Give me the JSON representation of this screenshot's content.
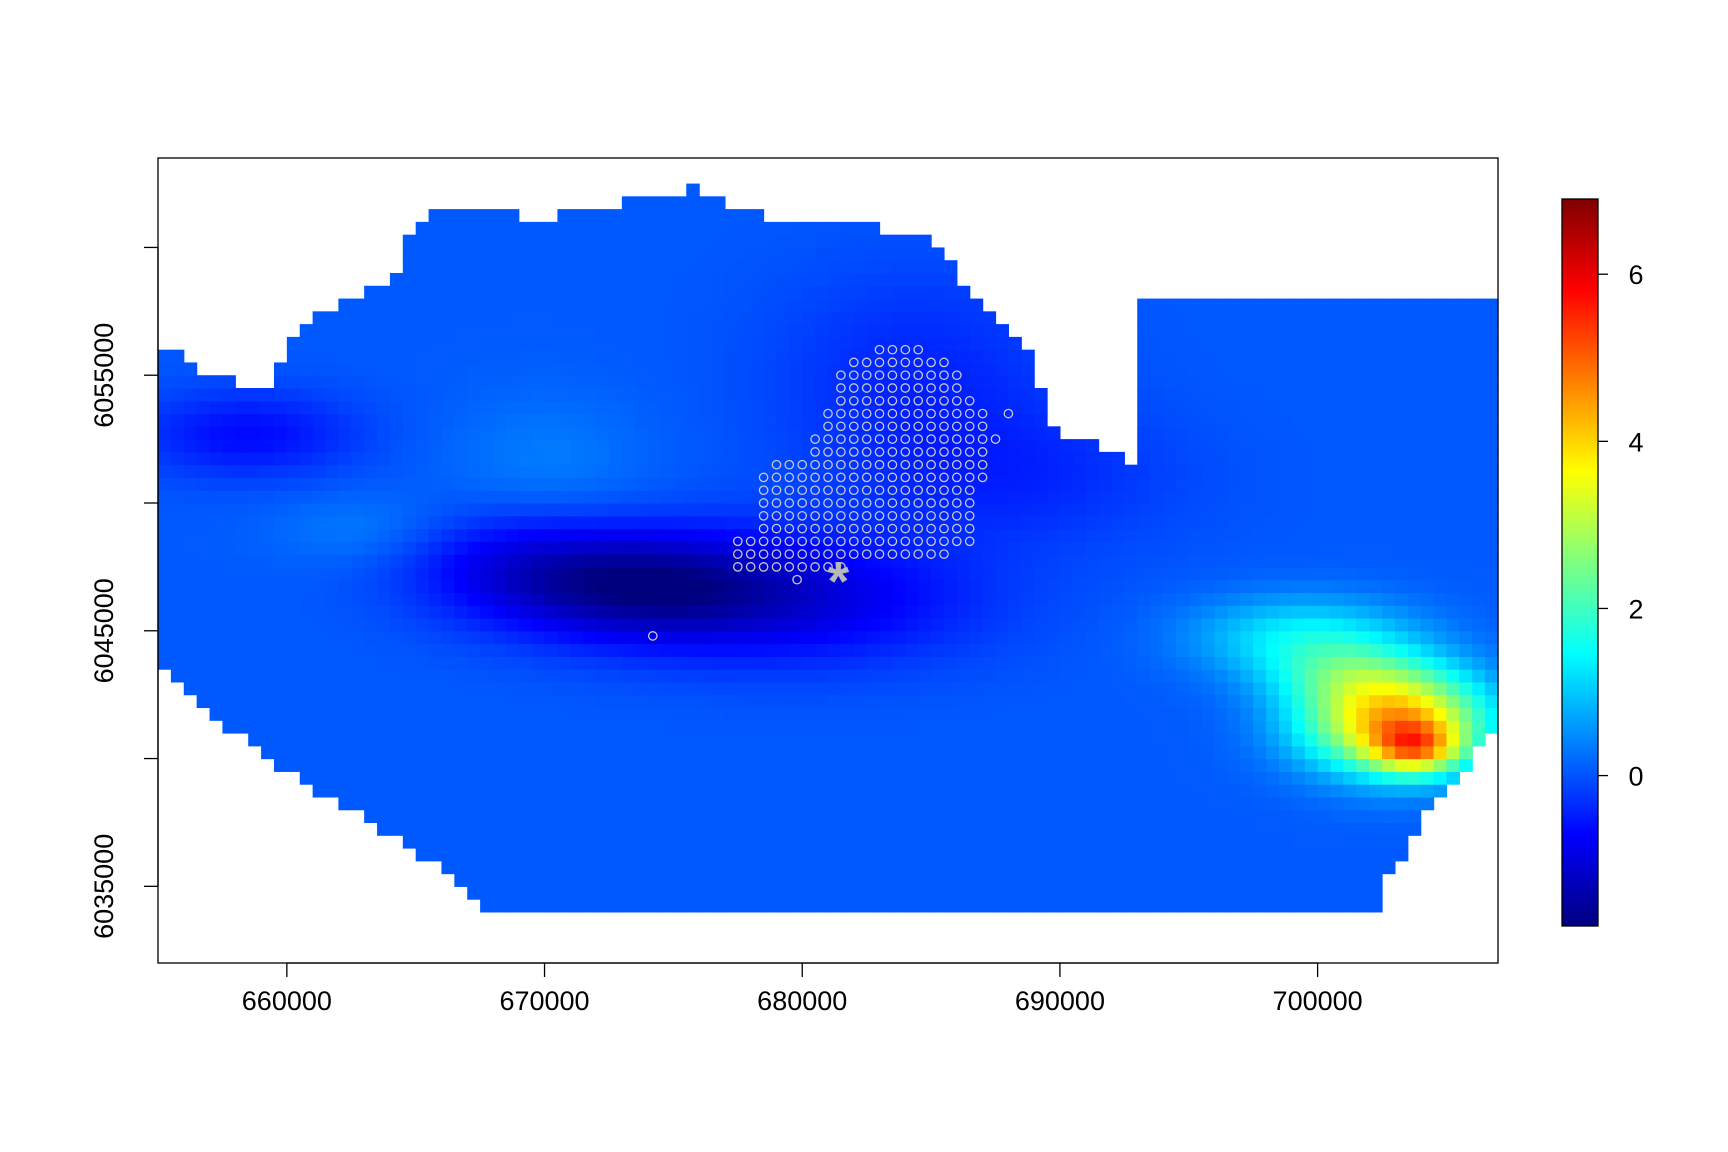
{
  "chart_data": {
    "type": "heatmap",
    "title": "",
    "xlabel": "",
    "ylabel": "",
    "xlim": [
      655000,
      707000
    ],
    "ylim": [
      6032000,
      6063500
    ],
    "x_ticks": [
      660000,
      670000,
      680000,
      690000,
      700000
    ],
    "x_tick_labels": [
      "660000",
      "670000",
      "680000",
      "690000",
      "700000"
    ],
    "y_ticks": [
      6035000,
      6040000,
      6045000,
      6050000,
      6055000,
      6060000
    ],
    "y_tick_labels": [
      "6035000",
      "",
      "6045000",
      "",
      "6055000",
      ""
    ],
    "colorbar": {
      "range": [
        -1.8,
        6.9
      ],
      "ticks": [
        0,
        2,
        4,
        6
      ],
      "tick_labels": [
        "0",
        "2",
        "4",
        "6"
      ],
      "palette": [
        "#00007F",
        "#0000FF",
        "#007FFF",
        "#00FFFF",
        "#7FFF7F",
        "#FFFF00",
        "#FF7F00",
        "#FF0000",
        "#7F0000"
      ]
    },
    "grid": false,
    "legend": "colorbar right",
    "region_polygons": [
      [
        [
          655000,
          6056300
        ],
        [
          657000,
          6055000
        ],
        [
          659500,
          6054500
        ],
        [
          660000,
          6056000
        ],
        [
          661000,
          6057200
        ],
        [
          662500,
          6058000
        ],
        [
          664000,
          6058500
        ],
        [
          665000,
          6061000
        ],
        [
          666500,
          6061500
        ],
        [
          668000,
          6061600
        ],
        [
          669500,
          6061000
        ],
        [
          672000,
          6061500
        ],
        [
          674000,
          6062000
        ],
        [
          676000,
          6062300
        ],
        [
          678000,
          6061300
        ],
        [
          681000,
          6061000
        ],
        [
          684500,
          6060600
        ],
        [
          686000,
          6059000
        ],
        [
          687500,
          6057500
        ],
        [
          689000,
          6056000
        ],
        [
          689500,
          6053000
        ],
        [
          691000,
          6052500
        ],
        [
          693000,
          6051500
        ],
        [
          693000,
          6058200
        ],
        [
          707000,
          6058200
        ],
        [
          707000,
          6041600
        ],
        [
          706000,
          6040000
        ],
        [
          704500,
          6038300
        ],
        [
          703500,
          6036700
        ],
        [
          702500,
          6034800
        ],
        [
          702500,
          6034000
        ],
        [
          667500,
          6034000
        ],
        [
          667000,
          6035000
        ],
        [
          665500,
          6036000
        ],
        [
          663500,
          6037300
        ],
        [
          661500,
          6038600
        ],
        [
          660000,
          6039500
        ],
        [
          658000,
          6041000
        ],
        [
          656000,
          6042800
        ],
        [
          655000,
          6044000
        ]
      ]
    ],
    "field_base": 0.05,
    "field_features": [
      {
        "x": 673500,
        "y": 6046800,
        "sx": 4000,
        "sy": 1500,
        "amp": -1.5
      },
      {
        "x": 680000,
        "y": 6046200,
        "sx": 5000,
        "sy": 1800,
        "amp": -0.9
      },
      {
        "x": 668500,
        "y": 6047800,
        "sx": 3000,
        "sy": 1500,
        "amp": -0.6
      },
      {
        "x": 658500,
        "y": 6052700,
        "sx": 3000,
        "sy": 1200,
        "amp": -0.7
      },
      {
        "x": 684500,
        "y": 6055000,
        "sx": 4000,
        "sy": 3000,
        "amp": -0.45
      },
      {
        "x": 670000,
        "y": 6051500,
        "sx": 2800,
        "sy": 2000,
        "amp": 0.3
      },
      {
        "x": 663000,
        "y": 6049000,
        "sx": 2500,
        "sy": 1000,
        "amp": 0.3
      },
      {
        "x": 688500,
        "y": 6051000,
        "sx": 4500,
        "sy": 2000,
        "amp": -0.4
      },
      {
        "x": 703000,
        "y": 6041500,
        "sx": 2500,
        "sy": 1400,
        "amp": 4.2
      },
      {
        "x": 703800,
        "y": 6040400,
        "sx": 1200,
        "sy": 700,
        "amp": 2.4
      },
      {
        "x": 699500,
        "y": 6044800,
        "sx": 3000,
        "sy": 1100,
        "amp": 1.3
      },
      {
        "x": 701000,
        "y": 6043300,
        "sx": 2200,
        "sy": 900,
        "amp": 1.0
      }
    ],
    "observation_points_shape": "open-circle",
    "observation_points": [
      [
        683000,
        6056000
      ],
      [
        683500,
        6056000
      ],
      [
        684000,
        6056000
      ],
      [
        684500,
        6056000
      ],
      [
        682000,
        6055500
      ],
      [
        682500,
        6055500
      ],
      [
        683000,
        6055500
      ],
      [
        683500,
        6055500
      ],
      [
        684000,
        6055500
      ],
      [
        684500,
        6055500
      ],
      [
        685000,
        6055500
      ],
      [
        685500,
        6055500
      ],
      [
        681500,
        6055000
      ],
      [
        682000,
        6055000
      ],
      [
        682500,
        6055000
      ],
      [
        683000,
        6055000
      ],
      [
        683500,
        6055000
      ],
      [
        684000,
        6055000
      ],
      [
        684500,
        6055000
      ],
      [
        685000,
        6055000
      ],
      [
        685500,
        6055000
      ],
      [
        686000,
        6055000
      ],
      [
        681500,
        6054500
      ],
      [
        682000,
        6054500
      ],
      [
        682500,
        6054500
      ],
      [
        683000,
        6054500
      ],
      [
        683500,
        6054500
      ],
      [
        684000,
        6054500
      ],
      [
        684500,
        6054500
      ],
      [
        685000,
        6054500
      ],
      [
        685500,
        6054500
      ],
      [
        686000,
        6054500
      ],
      [
        681500,
        6054000
      ],
      [
        682000,
        6054000
      ],
      [
        682500,
        6054000
      ],
      [
        683000,
        6054000
      ],
      [
        683500,
        6054000
      ],
      [
        684000,
        6054000
      ],
      [
        684500,
        6054000
      ],
      [
        685000,
        6054000
      ],
      [
        685500,
        6054000
      ],
      [
        686000,
        6054000
      ],
      [
        686500,
        6054000
      ],
      [
        681000,
        6053500
      ],
      [
        681500,
        6053500
      ],
      [
        682000,
        6053500
      ],
      [
        682500,
        6053500
      ],
      [
        683000,
        6053500
      ],
      [
        683500,
        6053500
      ],
      [
        684000,
        6053500
      ],
      [
        684500,
        6053500
      ],
      [
        685000,
        6053500
      ],
      [
        685500,
        6053500
      ],
      [
        686000,
        6053500
      ],
      [
        686500,
        6053500
      ],
      [
        687000,
        6053500
      ],
      [
        681000,
        6053000
      ],
      [
        681500,
        6053000
      ],
      [
        682000,
        6053000
      ],
      [
        682500,
        6053000
      ],
      [
        683000,
        6053000
      ],
      [
        683500,
        6053000
      ],
      [
        684000,
        6053000
      ],
      [
        684500,
        6053000
      ],
      [
        685000,
        6053000
      ],
      [
        685500,
        6053000
      ],
      [
        686000,
        6053000
      ],
      [
        686500,
        6053000
      ],
      [
        687000,
        6053000
      ],
      [
        680500,
        6052500
      ],
      [
        681000,
        6052500
      ],
      [
        681500,
        6052500
      ],
      [
        682000,
        6052500
      ],
      [
        682500,
        6052500
      ],
      [
        683000,
        6052500
      ],
      [
        683500,
        6052500
      ],
      [
        684000,
        6052500
      ],
      [
        684500,
        6052500
      ],
      [
        685000,
        6052500
      ],
      [
        685500,
        6052500
      ],
      [
        686000,
        6052500
      ],
      [
        686500,
        6052500
      ],
      [
        687000,
        6052500
      ],
      [
        687500,
        6052500
      ],
      [
        680500,
        6052000
      ],
      [
        681000,
        6052000
      ],
      [
        681500,
        6052000
      ],
      [
        682000,
        6052000
      ],
      [
        682500,
        6052000
      ],
      [
        683000,
        6052000
      ],
      [
        683500,
        6052000
      ],
      [
        684000,
        6052000
      ],
      [
        684500,
        6052000
      ],
      [
        685000,
        6052000
      ],
      [
        685500,
        6052000
      ],
      [
        686000,
        6052000
      ],
      [
        686500,
        6052000
      ],
      [
        687000,
        6052000
      ],
      [
        679000,
        6051500
      ],
      [
        679500,
        6051500
      ],
      [
        680000,
        6051500
      ],
      [
        680500,
        6051500
      ],
      [
        681000,
        6051500
      ],
      [
        681500,
        6051500
      ],
      [
        682000,
        6051500
      ],
      [
        682500,
        6051500
      ],
      [
        683000,
        6051500
      ],
      [
        683500,
        6051500
      ],
      [
        684000,
        6051500
      ],
      [
        684500,
        6051500
      ],
      [
        685000,
        6051500
      ],
      [
        685500,
        6051500
      ],
      [
        686000,
        6051500
      ],
      [
        686500,
        6051500
      ],
      [
        687000,
        6051500
      ],
      [
        678500,
        6051000
      ],
      [
        679000,
        6051000
      ],
      [
        679500,
        6051000
      ],
      [
        680000,
        6051000
      ],
      [
        680500,
        6051000
      ],
      [
        681000,
        6051000
      ],
      [
        681500,
        6051000
      ],
      [
        682000,
        6051000
      ],
      [
        682500,
        6051000
      ],
      [
        683000,
        6051000
      ],
      [
        683500,
        6051000
      ],
      [
        684000,
        6051000
      ],
      [
        684500,
        6051000
      ],
      [
        685000,
        6051000
      ],
      [
        685500,
        6051000
      ],
      [
        686000,
        6051000
      ],
      [
        686500,
        6051000
      ],
      [
        687000,
        6051000
      ],
      [
        678500,
        6050500
      ],
      [
        679000,
        6050500
      ],
      [
        679500,
        6050500
      ],
      [
        680000,
        6050500
      ],
      [
        680500,
        6050500
      ],
      [
        681000,
        6050500
      ],
      [
        681500,
        6050500
      ],
      [
        682000,
        6050500
      ],
      [
        682500,
        6050500
      ],
      [
        683000,
        6050500
      ],
      [
        683500,
        6050500
      ],
      [
        684000,
        6050500
      ],
      [
        684500,
        6050500
      ],
      [
        685000,
        6050500
      ],
      [
        685500,
        6050500
      ],
      [
        686000,
        6050500
      ],
      [
        686500,
        6050500
      ],
      [
        678500,
        6050000
      ],
      [
        679000,
        6050000
      ],
      [
        679500,
        6050000
      ],
      [
        680000,
        6050000
      ],
      [
        680500,
        6050000
      ],
      [
        681000,
        6050000
      ],
      [
        681500,
        6050000
      ],
      [
        682000,
        6050000
      ],
      [
        682500,
        6050000
      ],
      [
        683000,
        6050000
      ],
      [
        683500,
        6050000
      ],
      [
        684000,
        6050000
      ],
      [
        684500,
        6050000
      ],
      [
        685000,
        6050000
      ],
      [
        685500,
        6050000
      ],
      [
        686000,
        6050000
      ],
      [
        686500,
        6050000
      ],
      [
        678500,
        6049500
      ],
      [
        679000,
        6049500
      ],
      [
        679500,
        6049500
      ],
      [
        680000,
        6049500
      ],
      [
        680500,
        6049500
      ],
      [
        681000,
        6049500
      ],
      [
        681500,
        6049500
      ],
      [
        682000,
        6049500
      ],
      [
        682500,
        6049500
      ],
      [
        683000,
        6049500
      ],
      [
        683500,
        6049500
      ],
      [
        684000,
        6049500
      ],
      [
        684500,
        6049500
      ],
      [
        685000,
        6049500
      ],
      [
        685500,
        6049500
      ],
      [
        686000,
        6049500
      ],
      [
        686500,
        6049500
      ],
      [
        678500,
        6049000
      ],
      [
        679000,
        6049000
      ],
      [
        679500,
        6049000
      ],
      [
        680000,
        6049000
      ],
      [
        680500,
        6049000
      ],
      [
        681000,
        6049000
      ],
      [
        681500,
        6049000
      ],
      [
        682000,
        6049000
      ],
      [
        682500,
        6049000
      ],
      [
        683000,
        6049000
      ],
      [
        683500,
        6049000
      ],
      [
        684000,
        6049000
      ],
      [
        684500,
        6049000
      ],
      [
        685000,
        6049000
      ],
      [
        685500,
        6049000
      ],
      [
        686000,
        6049000
      ],
      [
        686500,
        6049000
      ],
      [
        677500,
        6048500
      ],
      [
        678000,
        6048500
      ],
      [
        678500,
        6048500
      ],
      [
        679000,
        6048500
      ],
      [
        679500,
        6048500
      ],
      [
        680000,
        6048500
      ],
      [
        680500,
        6048500
      ],
      [
        681000,
        6048500
      ],
      [
        681500,
        6048500
      ],
      [
        682000,
        6048500
      ],
      [
        682500,
        6048500
      ],
      [
        683000,
        6048500
      ],
      [
        683500,
        6048500
      ],
      [
        684000,
        6048500
      ],
      [
        684500,
        6048500
      ],
      [
        685000,
        6048500
      ],
      [
        685500,
        6048500
      ],
      [
        686000,
        6048500
      ],
      [
        686500,
        6048500
      ],
      [
        677500,
        6048000
      ],
      [
        678000,
        6048000
      ],
      [
        678500,
        6048000
      ],
      [
        679000,
        6048000
      ],
      [
        679500,
        6048000
      ],
      [
        680000,
        6048000
      ],
      [
        680500,
        6048000
      ],
      [
        681000,
        6048000
      ],
      [
        681500,
        6048000
      ],
      [
        682000,
        6048000
      ],
      [
        682500,
        6048000
      ],
      [
        683000,
        6048000
      ],
      [
        683500,
        6048000
      ],
      [
        684000,
        6048000
      ],
      [
        684500,
        6048000
      ],
      [
        685000,
        6048000
      ],
      [
        685500,
        6048000
      ],
      [
        677500,
        6047500
      ],
      [
        678000,
        6047500
      ],
      [
        678500,
        6047500
      ],
      [
        679000,
        6047500
      ],
      [
        679500,
        6047500
      ],
      [
        680000,
        6047500
      ],
      [
        680500,
        6047500
      ],
      [
        681000,
        6047500
      ],
      [
        681500,
        6047500
      ],
      [
        679800,
        6047000
      ],
      [
        674200,
        6044800
      ],
      [
        688000,
        6053500
      ]
    ],
    "marked_point": {
      "x": 681400,
      "y": 6047200,
      "symbol": "*"
    }
  }
}
